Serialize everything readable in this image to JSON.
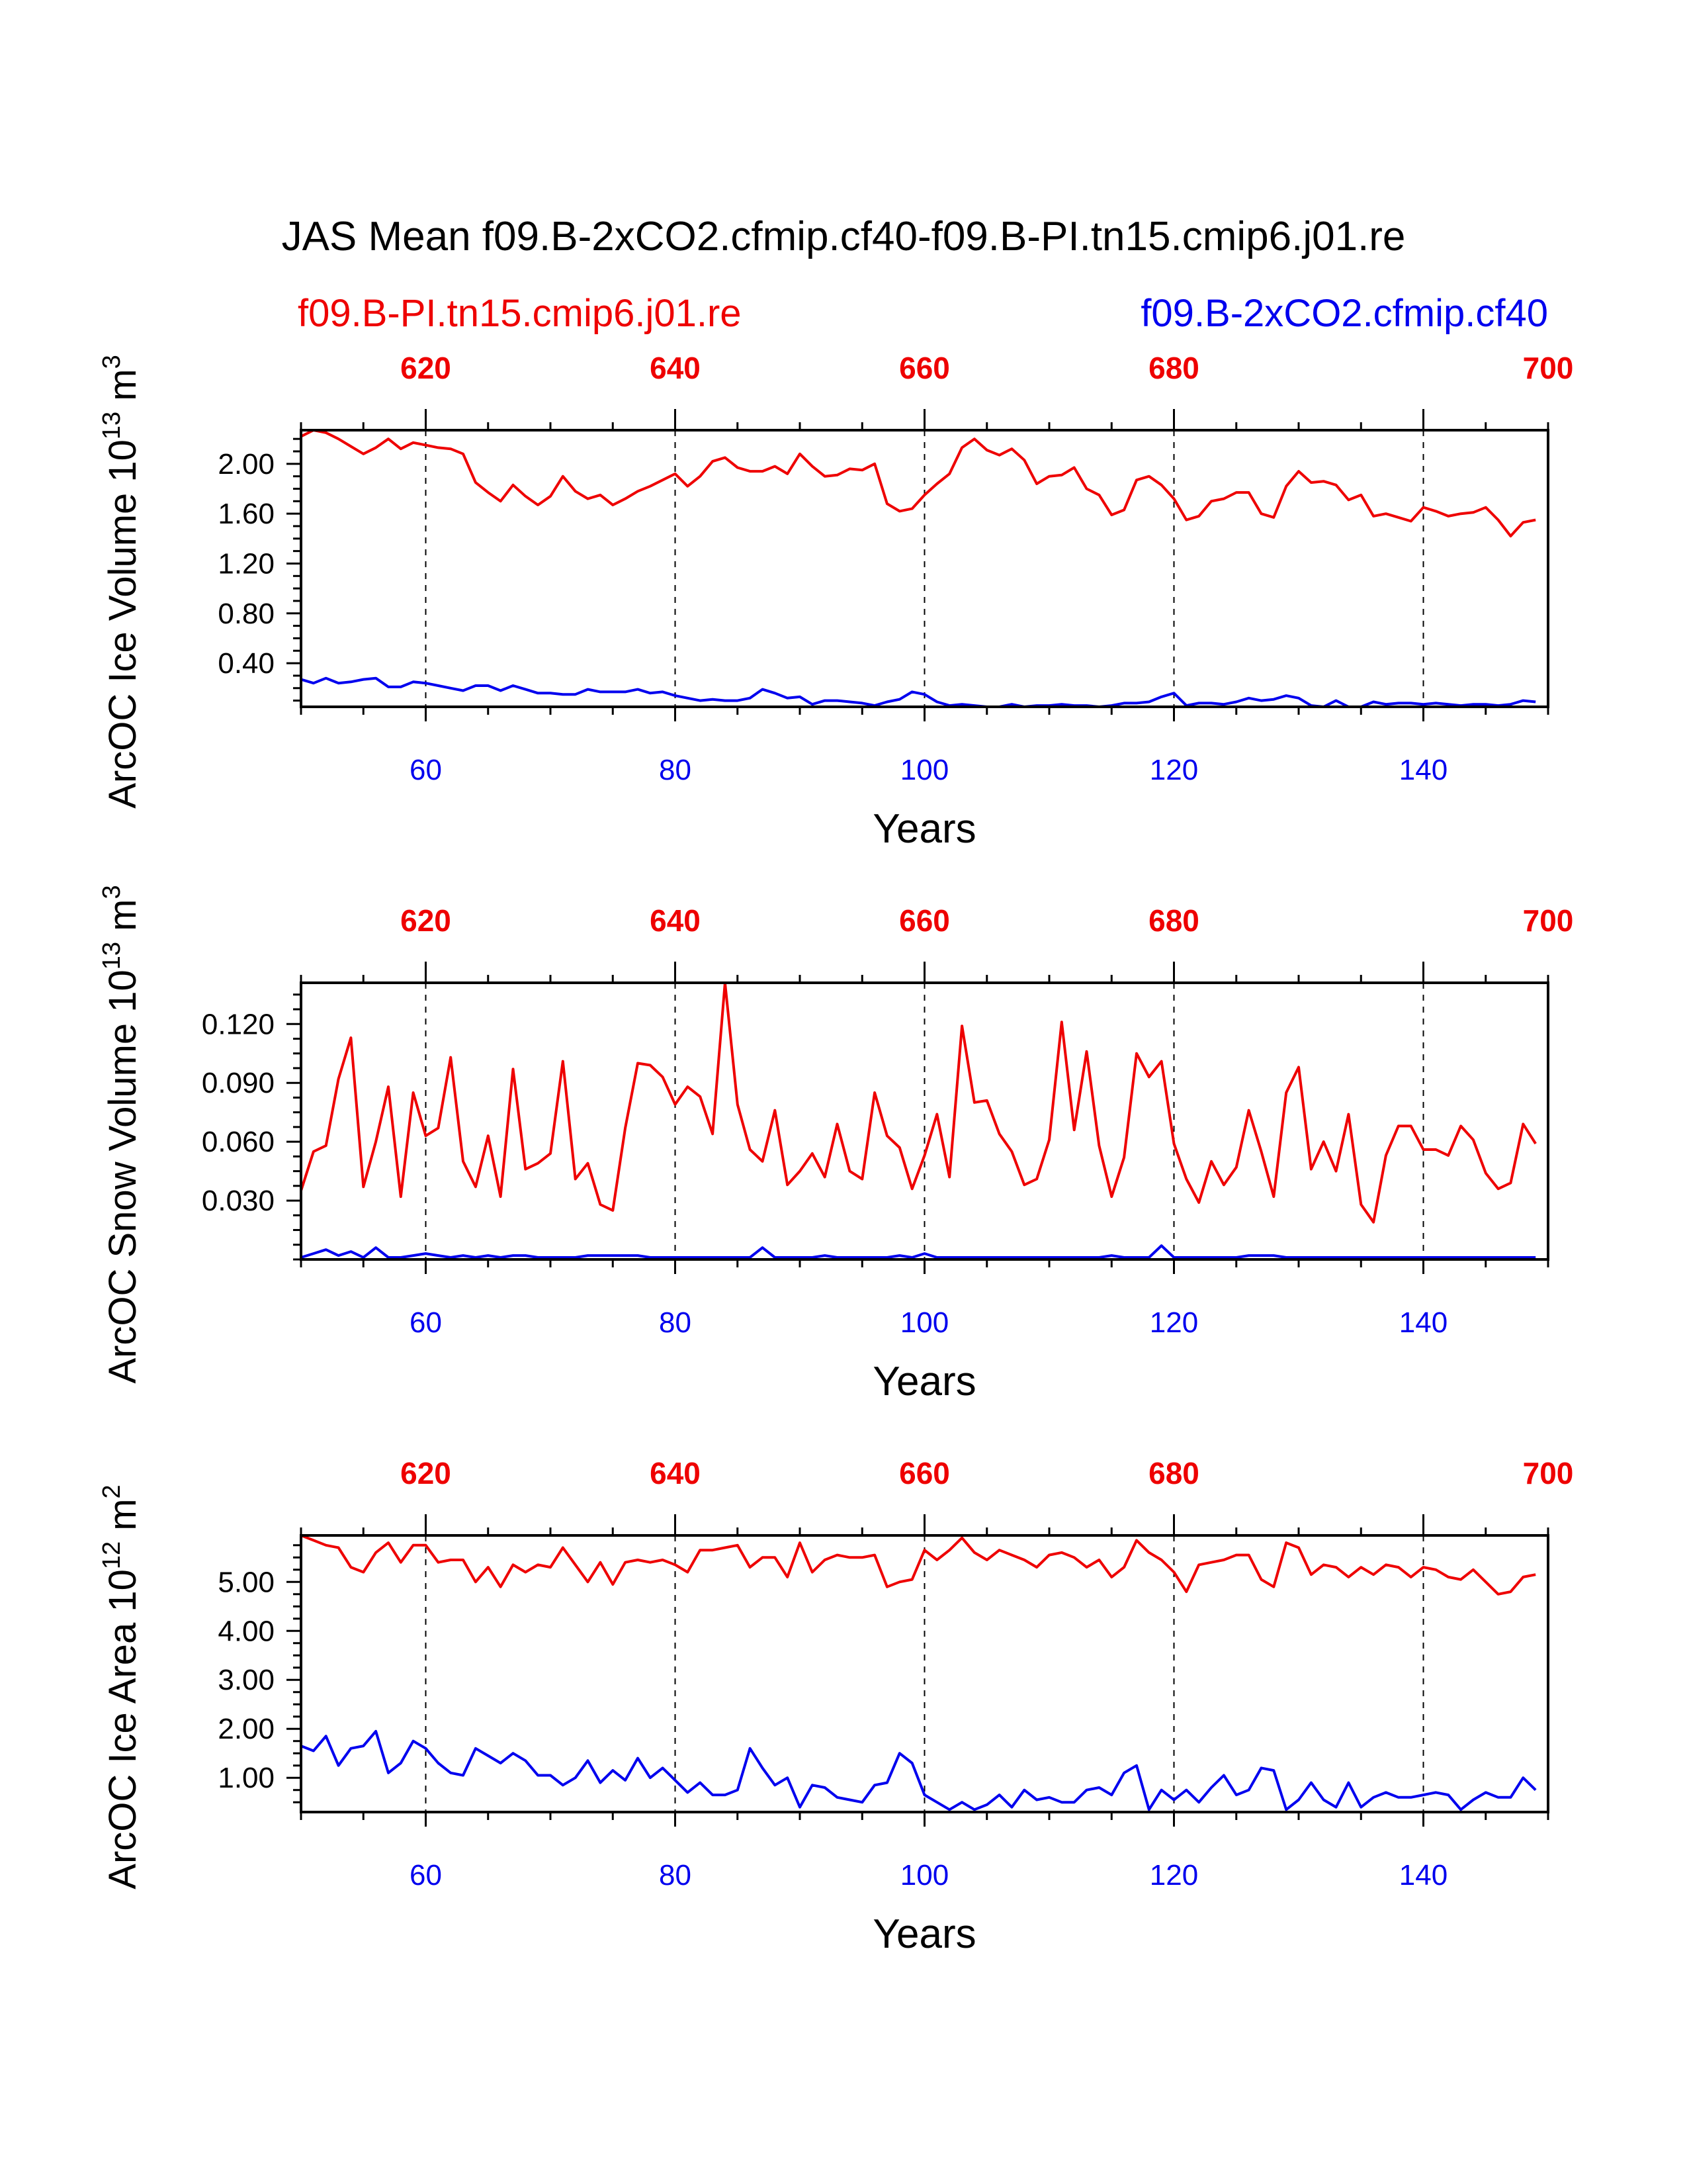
{
  "title": "JAS Mean f09.B-2xCO2.cfmip.cf40-f09.B-PI.tn15.cmip6.j01.re",
  "legend": {
    "left_label": "f09.B-PI.tn15.cmip6.j01.re",
    "right_label": "f09.B-2xCO2.cfmip.cf40"
  },
  "colors": {
    "pi": "#ee0000",
    "co2": "#0000ee",
    "axis": "#000000"
  },
  "chart_data": [
    {
      "type": "line",
      "title": "",
      "ylabel": "ArcOC Ice Volume 10",
      "ylabel_exp": "13",
      "ylabel_unit": " m",
      "ylabel_unit_exp": "3",
      "xlabel": "Years",
      "xlim": [
        50,
        150
      ],
      "xticks": [
        60,
        80,
        100,
        120,
        140
      ],
      "xlabels": [
        "60",
        "80",
        "100",
        "120",
        "140"
      ],
      "top_xticks": [
        60,
        80,
        100,
        120,
        140,
        160
      ],
      "top_xlabels": [
        "620",
        "640",
        "660",
        "680",
        "700"
      ],
      "top_label_positions": [
        60,
        80,
        100,
        120,
        150
      ],
      "ylim": [
        0.05,
        2.27
      ],
      "yticks": [
        0.4,
        0.8,
        1.2,
        1.6,
        2.0
      ],
      "ylabels": [
        "0.40",
        "0.80",
        "1.20",
        "1.60",
        "2.00"
      ],
      "series": [
        {
          "name": "f09.B-PI.tn15.cmip6.j01.re",
          "color": "pi",
          "x_start": 50,
          "values": [
            2.22,
            2.27,
            2.25,
            2.2,
            2.14,
            2.08,
            2.13,
            2.2,
            2.12,
            2.17,
            2.15,
            2.13,
            2.12,
            2.08,
            1.85,
            1.77,
            1.7,
            1.83,
            1.74,
            1.67,
            1.74,
            1.9,
            1.78,
            1.72,
            1.75,
            1.67,
            1.72,
            1.78,
            1.82,
            1.87,
            1.92,
            1.82,
            1.9,
            2.02,
            2.05,
            1.97,
            1.94,
            1.94,
            1.98,
            1.92,
            2.08,
            1.98,
            1.9,
            1.91,
            1.96,
            1.95,
            2.0,
            1.68,
            1.62,
            1.64,
            1.75,
            1.84,
            1.92,
            2.13,
            2.2,
            2.11,
            2.07,
            2.12,
            2.03,
            1.84,
            1.9,
            1.91,
            1.97,
            1.8,
            1.75,
            1.59,
            1.63,
            1.87,
            1.9,
            1.83,
            1.72,
            1.55,
            1.58,
            1.7,
            1.72,
            1.77,
            1.77,
            1.6,
            1.57,
            1.82,
            1.94,
            1.85,
            1.86,
            1.83,
            1.71,
            1.75,
            1.58,
            1.6,
            1.57,
            1.54,
            1.65,
            1.62,
            1.58,
            1.6,
            1.61,
            1.65,
            1.55,
            1.42,
            1.53,
            1.55
          ]
        },
        {
          "name": "f09.B-2xCO2.cfmip.cf40",
          "color": "co2",
          "x_start": 50,
          "values": [
            0.27,
            0.24,
            0.28,
            0.24,
            0.25,
            0.27,
            0.28,
            0.21,
            0.21,
            0.25,
            0.24,
            0.22,
            0.2,
            0.18,
            0.22,
            0.22,
            0.18,
            0.22,
            0.19,
            0.16,
            0.16,
            0.15,
            0.15,
            0.19,
            0.17,
            0.17,
            0.17,
            0.19,
            0.16,
            0.17,
            0.14,
            0.12,
            0.1,
            0.11,
            0.1,
            0.1,
            0.12,
            0.19,
            0.16,
            0.12,
            0.13,
            0.07,
            0.1,
            0.1,
            0.09,
            0.08,
            0.06,
            0.09,
            0.11,
            0.17,
            0.15,
            0.09,
            0.06,
            0.07,
            0.06,
            0.05,
            0.05,
            0.07,
            0.05,
            0.06,
            0.06,
            0.07,
            0.06,
            0.06,
            0.05,
            0.06,
            0.08,
            0.08,
            0.09,
            0.13,
            0.16,
            0.06,
            0.08,
            0.08,
            0.07,
            0.09,
            0.12,
            0.1,
            0.11,
            0.14,
            0.12,
            0.06,
            0.05,
            0.1,
            0.05,
            0.05,
            0.09,
            0.07,
            0.08,
            0.08,
            0.07,
            0.08,
            0.07,
            0.06,
            0.07,
            0.07,
            0.06,
            0.07,
            0.1,
            0.09
          ]
        }
      ]
    },
    {
      "type": "line",
      "title": "",
      "ylabel": "ArcOC Snow Volume 10",
      "ylabel_exp": "13",
      "ylabel_unit": " m",
      "ylabel_unit_exp": "3",
      "xlabel": "Years",
      "xlim": [
        50,
        150
      ],
      "xticks": [
        60,
        80,
        100,
        120,
        140
      ],
      "xlabels": [
        "60",
        "80",
        "100",
        "120",
        "140"
      ],
      "top_xticks": [
        60,
        80,
        100,
        120,
        140,
        160
      ],
      "top_xlabels": [
        "620",
        "640",
        "660",
        "680",
        "700"
      ],
      "top_label_positions": [
        60,
        80,
        100,
        120,
        150
      ],
      "ylim": [
        0,
        0.141
      ],
      "yticks": [
        0.03,
        0.06,
        0.09,
        0.12
      ],
      "ylabels": [
        "0.030",
        "0.060",
        "0.090",
        "0.120"
      ],
      "series": [
        {
          "name": "f09.B-PI.tn15.cmip6.j01.re",
          "color": "pi",
          "x_start": 50,
          "values": [
            0.035,
            0.055,
            0.058,
            0.092,
            0.113,
            0.037,
            0.06,
            0.088,
            0.032,
            0.085,
            0.063,
            0.067,
            0.103,
            0.05,
            0.037,
            0.063,
            0.032,
            0.097,
            0.046,
            0.049,
            0.054,
            0.101,
            0.041,
            0.049,
            0.028,
            0.025,
            0.067,
            0.1,
            0.099,
            0.093,
            0.079,
            0.088,
            0.083,
            0.064,
            0.141,
            0.079,
            0.056,
            0.05,
            0.076,
            0.038,
            0.045,
            0.054,
            0.042,
            0.069,
            0.045,
            0.041,
            0.085,
            0.063,
            0.057,
            0.036,
            0.053,
            0.074,
            0.042,
            0.119,
            0.08,
            0.081,
            0.064,
            0.055,
            0.038,
            0.041,
            0.061,
            0.121,
            0.066,
            0.106,
            0.058,
            0.032,
            0.052,
            0.105,
            0.093,
            0.101,
            0.059,
            0.041,
            0.029,
            0.05,
            0.038,
            0.047,
            0.076,
            0.055,
            0.032,
            0.085,
            0.098,
            0.046,
            0.06,
            0.045,
            0.074,
            0.028,
            0.019,
            0.053,
            0.068,
            0.068,
            0.056,
            0.056,
            0.053,
            0.068,
            0.061,
            0.044,
            0.036,
            0.039,
            0.069,
            0.059
          ]
        },
        {
          "name": "f09.B-2xCO2.cfmip.cf40",
          "color": "co2",
          "x_start": 50,
          "values": [
            0.001,
            0.003,
            0.005,
            0.002,
            0.004,
            0.001,
            0.006,
            0.001,
            0.001,
            0.002,
            0.003,
            0.002,
            0.001,
            0.002,
            0.001,
            0.002,
            0.001,
            0.002,
            0.002,
            0.001,
            0.001,
            0.001,
            0.001,
            0.002,
            0.002,
            0.002,
            0.002,
            0.002,
            0.001,
            0.001,
            0.001,
            0.001,
            0.001,
            0.001,
            0.001,
            0.001,
            0.001,
            0.006,
            0.001,
            0.001,
            0.001,
            0.001,
            0.002,
            0.001,
            0.001,
            0.001,
            0.001,
            0.001,
            0.002,
            0.001,
            0.003,
            0.001,
            0.001,
            0.001,
            0.001,
            0.001,
            0.001,
            0.001,
            0.001,
            0.001,
            0.001,
            0.001,
            0.001,
            0.001,
            0.001,
            0.002,
            0.001,
            0.001,
            0.001,
            0.007,
            0.001,
            0.001,
            0.001,
            0.001,
            0.001,
            0.001,
            0.002,
            0.002,
            0.002,
            0.001,
            0.001,
            0.001,
            0.001,
            0.001,
            0.001,
            0.001,
            0.001,
            0.001,
            0.001,
            0.001,
            0.001,
            0.001,
            0.001,
            0.001,
            0.001,
            0.001,
            0.001,
            0.001,
            0.001,
            0.001
          ]
        }
      ]
    },
    {
      "type": "line",
      "title": "",
      "ylabel": "ArcOC Ice Area 10",
      "ylabel_exp": "12",
      "ylabel_unit": " m",
      "ylabel_unit_exp": "2",
      "xlabel": "Years",
      "xlim": [
        50,
        150
      ],
      "xticks": [
        60,
        80,
        100,
        120,
        140
      ],
      "xlabels": [
        "60",
        "80",
        "100",
        "120",
        "140"
      ],
      "top_xticks": [
        60,
        80,
        100,
        120,
        140,
        160
      ],
      "top_xlabels": [
        "620",
        "640",
        "660",
        "680",
        "700"
      ],
      "top_label_positions": [
        60,
        80,
        100,
        120,
        150
      ],
      "ylim": [
        0.3,
        5.95
      ],
      "yticks": [
        1.0,
        2.0,
        3.0,
        4.0,
        5.0
      ],
      "ylabels": [
        "1.00",
        "2.00",
        "3.00",
        "4.00",
        "5.00"
      ],
      "series": [
        {
          "name": "f09.B-PI.tn15.cmip6.j01.re",
          "color": "pi",
          "x_start": 50,
          "values": [
            5.95,
            5.85,
            5.75,
            5.7,
            5.3,
            5.2,
            5.6,
            5.8,
            5.4,
            5.75,
            5.75,
            5.4,
            5.45,
            5.45,
            5.0,
            5.3,
            4.9,
            5.35,
            5.2,
            5.35,
            5.3,
            5.7,
            5.35,
            5.0,
            5.4,
            4.95,
            5.4,
            5.45,
            5.4,
            5.45,
            5.35,
            5.2,
            5.65,
            5.65,
            5.7,
            5.75,
            5.3,
            5.5,
            5.5,
            5.1,
            5.8,
            5.2,
            5.45,
            5.55,
            5.5,
            5.5,
            5.55,
            4.9,
            5.0,
            5.05,
            5.65,
            5.45,
            5.65,
            5.9,
            5.6,
            5.45,
            5.65,
            5.55,
            5.45,
            5.3,
            5.55,
            5.6,
            5.5,
            5.3,
            5.45,
            5.1,
            5.3,
            5.85,
            5.6,
            5.45,
            5.2,
            4.8,
            5.35,
            5.4,
            5.45,
            5.55,
            5.55,
            5.05,
            4.9,
            5.8,
            5.7,
            5.15,
            5.35,
            5.3,
            5.1,
            5.3,
            5.15,
            5.35,
            5.3,
            5.1,
            5.3,
            5.25,
            5.1,
            5.05,
            5.25,
            5.0,
            4.75,
            4.8,
            5.1,
            5.15
          ]
        },
        {
          "name": "f09.B-2xCO2.cfmip.cf40",
          "color": "co2",
          "x_start": 50,
          "values": [
            1.65,
            1.55,
            1.85,
            1.25,
            1.6,
            1.65,
            1.95,
            1.1,
            1.3,
            1.75,
            1.6,
            1.3,
            1.1,
            1.05,
            1.6,
            1.45,
            1.3,
            1.5,
            1.35,
            1.05,
            1.05,
            0.85,
            1.0,
            1.35,
            0.9,
            1.15,
            0.95,
            1.4,
            1.0,
            1.2,
            0.95,
            0.7,
            0.9,
            0.65,
            0.65,
            0.75,
            1.6,
            1.2,
            0.85,
            1.0,
            0.4,
            0.85,
            0.8,
            0.6,
            0.55,
            0.5,
            0.85,
            0.9,
            1.5,
            1.3,
            0.65,
            0.5,
            0.35,
            0.5,
            0.35,
            0.45,
            0.65,
            0.4,
            0.75,
            0.55,
            0.6,
            0.5,
            0.5,
            0.75,
            0.8,
            0.65,
            1.1,
            1.25,
            0.35,
            0.75,
            0.55,
            0.75,
            0.5,
            0.8,
            1.05,
            0.65,
            0.75,
            1.2,
            1.15,
            0.35,
            0.55,
            0.9,
            0.55,
            0.4,
            0.9,
            0.4,
            0.6,
            0.7,
            0.6,
            0.6,
            0.65,
            0.7,
            0.65,
            0.35,
            0.55,
            0.7,
            0.6,
            0.6,
            1.0,
            0.75
          ]
        }
      ]
    }
  ]
}
